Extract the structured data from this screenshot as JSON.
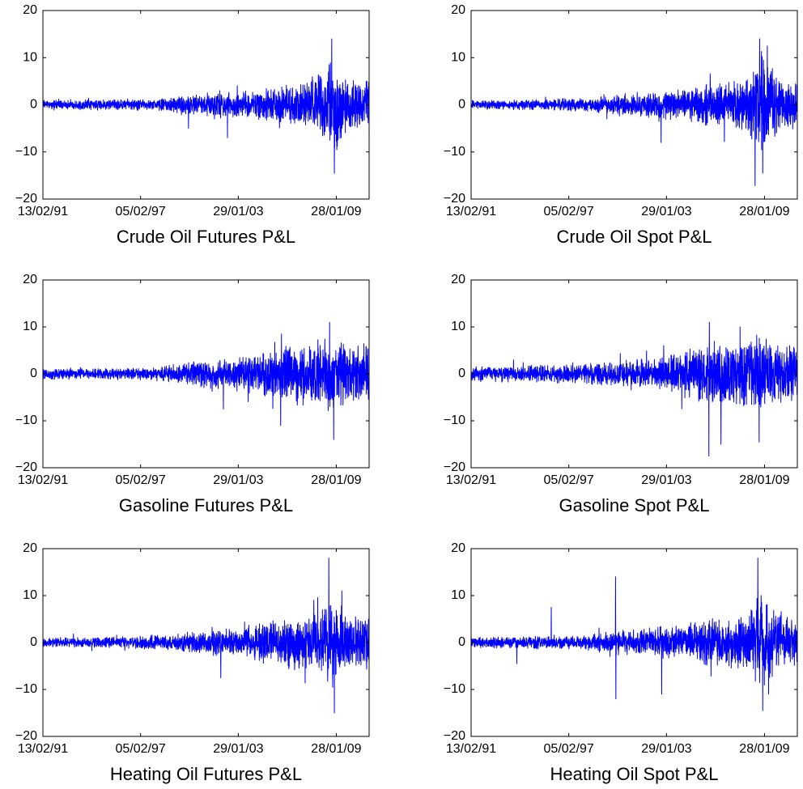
{
  "chart_data": [
    {
      "type": "line",
      "title": "Crude Oil Futures P&L",
      "x_tick_labels": [
        "13/02/91",
        "05/02/97",
        "29/01/03",
        "28/01/09"
      ],
      "x_ticks": [
        "1991-02-13",
        "1997-02-05",
        "2003-01-29",
        "2009-01-28"
      ],
      "xlim": [
        "1991-02-13",
        "2011-02-01"
      ],
      "ylim": [
        -20,
        20
      ],
      "y_ticks": [
        -20,
        -10,
        0,
        10,
        20
      ],
      "grid": false,
      "color": "#0000ff",
      "series": [
        {
          "x": [
            "1991-02-13",
            "1992-02-01",
            "1993-02-01",
            "1994-02-01",
            "1995-02-01",
            "1996-02-01",
            "1997-02-01",
            "1998-02-01",
            "1999-02-01",
            "2000-02-01",
            "2001-02-01",
            "2002-02-01",
            "2003-02-01",
            "2004-02-01",
            "2005-02-01",
            "2006-02-01",
            "2007-02-01",
            "2008-02-01",
            "2008-10-01",
            "2009-06-01",
            "2010-02-01",
            "2011-02-01"
          ],
          "amplitude": [
            0.8,
            0.8,
            0.8,
            0.9,
            0.9,
            1.0,
            1.0,
            1.1,
            1.4,
            1.8,
            2.0,
            2.2,
            2.4,
            2.6,
            3.2,
            3.6,
            3.8,
            5.5,
            9.0,
            7.0,
            4.5,
            4.5
          ],
          "spikes": [
            {
              "x": "2008-10-20",
              "y": 14
            },
            {
              "x": "2008-12-15",
              "y": -14.5
            },
            {
              "x": "2002-06-01",
              "y": -7
            },
            {
              "x": "2000-01-10",
              "y": -5
            },
            {
              "x": "2009-02-10",
              "y": -9.5
            }
          ]
        }
      ]
    },
    {
      "type": "line",
      "title": "Crude Oil Spot P&L",
      "x_tick_labels": [
        "13/02/91",
        "05/02/97",
        "29/01/03",
        "28/01/09"
      ],
      "x_ticks": [
        "1991-02-13",
        "1997-02-05",
        "2003-01-29",
        "2009-01-28"
      ],
      "xlim": [
        "1991-02-13",
        "2011-02-01"
      ],
      "ylim": [
        -20,
        20
      ],
      "y_ticks": [
        -20,
        -10,
        0,
        10,
        20
      ],
      "grid": false,
      "color": "#0000ff",
      "series": [
        {
          "x": [
            "1991-02-13",
            "1992-02-01",
            "1993-02-01",
            "1994-02-01",
            "1995-02-01",
            "1996-02-01",
            "1997-02-01",
            "1998-02-01",
            "1999-02-01",
            "2000-02-01",
            "2001-02-01",
            "2002-02-01",
            "2003-02-01",
            "2004-02-01",
            "2005-02-01",
            "2006-02-01",
            "2007-02-01",
            "2008-02-01",
            "2008-10-01",
            "2009-06-01",
            "2010-02-01",
            "2011-02-01"
          ],
          "amplitude": [
            0.8,
            0.8,
            0.8,
            0.9,
            0.9,
            1.0,
            1.1,
            1.2,
            1.5,
            1.9,
            2.1,
            2.3,
            2.5,
            2.8,
            3.4,
            3.8,
            4.0,
            5.8,
            9.5,
            7.0,
            4.5,
            4.5
          ],
          "spikes": [
            {
              "x": "2008-10-10",
              "y": 14
            },
            {
              "x": "2008-12-20",
              "y": -14.5
            },
            {
              "x": "2002-10-01",
              "y": -8
            },
            {
              "x": "2009-04-01",
              "y": 12.5
            }
          ]
        }
      ]
    },
    {
      "type": "line",
      "title": "Gasoline Futures P&L",
      "x_tick_labels": [
        "13/02/91",
        "05/02/97",
        "29/01/03",
        "28/01/09"
      ],
      "x_ticks": [
        "1991-02-13",
        "1997-02-05",
        "2003-01-29",
        "2009-01-28"
      ],
      "xlim": [
        "1991-02-13",
        "2011-02-01"
      ],
      "ylim": [
        -20,
        20
      ],
      "y_ticks": [
        -20,
        -10,
        0,
        10,
        20
      ],
      "grid": false,
      "color": "#0000ff",
      "series": [
        {
          "x": [
            "1991-02-13",
            "1992-02-01",
            "1993-02-01",
            "1994-02-01",
            "1995-02-01",
            "1996-02-01",
            "1997-02-01",
            "1998-02-01",
            "1999-02-01",
            "2000-02-01",
            "2001-02-01",
            "2002-02-01",
            "2003-02-01",
            "2004-02-01",
            "2005-02-01",
            "2006-02-01",
            "2007-02-01",
            "2008-02-01",
            "2008-10-01",
            "2009-06-01",
            "2010-02-01",
            "2011-02-01"
          ],
          "amplitude": [
            1.0,
            0.9,
            0.9,
            0.9,
            1.0,
            1.0,
            1.1,
            1.2,
            1.6,
            2.1,
            2.4,
            2.6,
            3.0,
            3.5,
            4.5,
            5.0,
            5.5,
            6.0,
            7.0,
            6.0,
            5.0,
            5.0
          ],
          "spikes": [
            {
              "x": "2008-09-01",
              "y": 11
            },
            {
              "x": "2008-12-01",
              "y": -14
            },
            {
              "x": "2002-03-01",
              "y": -7.5
            },
            {
              "x": "2005-09-01",
              "y": -11
            },
            {
              "x": "2005-09-20",
              "y": 8.5
            }
          ]
        }
      ]
    },
    {
      "type": "line",
      "title": "Gasoline Spot P&L",
      "x_tick_labels": [
        "13/02/91",
        "05/02/97",
        "29/01/03",
        "28/01/09"
      ],
      "x_ticks": [
        "1991-02-13",
        "1997-02-05",
        "2003-01-29",
        "2009-01-28"
      ],
      "xlim": [
        "1991-02-13",
        "2011-02-01"
      ],
      "ylim": [
        -20,
        20
      ],
      "y_ticks": [
        -20,
        -10,
        0,
        10,
        20
      ],
      "grid": false,
      "color": "#0000ff",
      "series": [
        {
          "x": [
            "1991-02-13",
            "1992-02-01",
            "1993-02-01",
            "1994-02-01",
            "1995-02-01",
            "1996-02-01",
            "1997-02-01",
            "1998-02-01",
            "1999-02-01",
            "2000-02-01",
            "2001-02-01",
            "2002-02-01",
            "2003-02-01",
            "2004-02-01",
            "2005-02-01",
            "2006-02-01",
            "2007-02-01",
            "2008-02-01",
            "2008-10-01",
            "2009-06-01",
            "2010-02-01",
            "2011-02-01"
          ],
          "amplitude": [
            1.3,
            1.3,
            1.4,
            1.4,
            1.5,
            1.6,
            1.7,
            1.8,
            2.0,
            2.3,
            2.6,
            2.9,
            3.2,
            3.8,
            5.0,
            5.5,
            5.5,
            6.0,
            7.0,
            6.0,
            5.0,
            5.0
          ],
          "spikes": [
            {
              "x": "2005-09-01",
              "y": -17.5
            },
            {
              "x": "2005-09-15",
              "y": 11
            },
            {
              "x": "2006-06-01",
              "y": -15
            },
            {
              "x": "2008-10-01",
              "y": -14.5
            },
            {
              "x": "2007-08-01",
              "y": 10
            }
          ]
        }
      ]
    },
    {
      "type": "line",
      "title": "Heating Oil Futures P&L",
      "x_tick_labels": [
        "13/02/91",
        "05/02/97",
        "29/01/03",
        "28/01/09"
      ],
      "x_ticks": [
        "1991-02-13",
        "1997-02-05",
        "2003-01-29",
        "2009-01-28"
      ],
      "xlim": [
        "1991-02-13",
        "2011-02-01"
      ],
      "ylim": [
        -20,
        20
      ],
      "y_ticks": [
        -20,
        -10,
        0,
        10,
        20
      ],
      "grid": false,
      "color": "#0000ff",
      "series": [
        {
          "x": [
            "1991-02-13",
            "1992-02-01",
            "1993-02-01",
            "1994-02-01",
            "1995-02-01",
            "1996-02-01",
            "1997-02-01",
            "1998-02-01",
            "1999-02-01",
            "2000-02-01",
            "2001-02-01",
            "2002-02-01",
            "2003-02-01",
            "2004-02-01",
            "2005-02-01",
            "2006-02-01",
            "2007-02-01",
            "2008-02-01",
            "2008-10-01",
            "2009-06-01",
            "2010-02-01",
            "2011-02-01"
          ],
          "amplitude": [
            0.9,
            0.9,
            0.9,
            0.9,
            1.0,
            1.0,
            1.1,
            1.3,
            1.6,
            2.0,
            2.2,
            2.4,
            2.8,
            3.2,
            4.0,
            4.5,
            4.5,
            5.5,
            9.0,
            7.0,
            4.5,
            4.5
          ],
          "spikes": [
            {
              "x": "2008-08-15",
              "y": 18
            },
            {
              "x": "2008-12-15",
              "y": -15
            },
            {
              "x": "2002-01-01",
              "y": -7.5
            },
            {
              "x": "2009-06-01",
              "y": 11
            }
          ]
        }
      ]
    },
    {
      "type": "line",
      "title": "Heating Oil Spot P&L",
      "x_tick_labels": [
        "13/02/91",
        "05/02/97",
        "29/01/03",
        "28/01/09"
      ],
      "x_ticks": [
        "1991-02-13",
        "1997-02-05",
        "2003-01-29",
        "2009-01-28"
      ],
      "xlim": [
        "1991-02-13",
        "2011-02-01"
      ],
      "ylim": [
        -20,
        20
      ],
      "y_ticks": [
        -20,
        -10,
        0,
        10,
        20
      ],
      "grid": false,
      "color": "#0000ff",
      "series": [
        {
          "x": [
            "1991-02-13",
            "1992-02-01",
            "1993-02-01",
            "1994-02-01",
            "1995-02-01",
            "1996-02-01",
            "1997-02-01",
            "1998-02-01",
            "1999-02-01",
            "2000-02-01",
            "2001-02-01",
            "2002-02-01",
            "2003-02-01",
            "2004-02-01",
            "2005-02-01",
            "2006-02-01",
            "2007-02-01",
            "2008-02-01",
            "2008-10-01",
            "2009-06-01",
            "2010-02-01",
            "2011-02-01"
          ],
          "amplitude": [
            1.0,
            1.0,
            1.0,
            1.0,
            1.1,
            1.1,
            1.2,
            1.3,
            1.7,
            2.2,
            2.4,
            2.5,
            2.8,
            3.0,
            3.8,
            4.2,
            4.5,
            5.5,
            8.5,
            6.5,
            4.5,
            4.5
          ],
          "spikes": [
            {
              "x": "1996-01-10",
              "y": 7.5
            },
            {
              "x": "1999-12-15",
              "y": 14
            },
            {
              "x": "1999-12-25",
              "y": -12
            },
            {
              "x": "2002-10-15",
              "y": -11
            },
            {
              "x": "1993-12-01",
              "y": -4.5
            },
            {
              "x": "2008-09-01",
              "y": 18
            },
            {
              "x": "2008-12-20",
              "y": -14.5
            },
            {
              "x": "2009-05-01",
              "y": -11
            }
          ]
        }
      ]
    }
  ]
}
